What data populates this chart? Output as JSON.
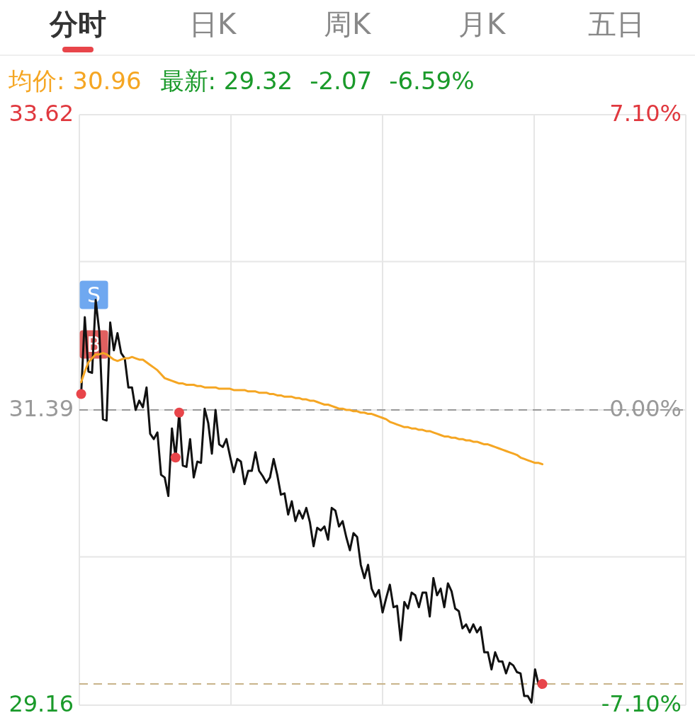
{
  "chart_data": {
    "type": "line",
    "annotations": [
      "分时",
      "日K",
      "周K",
      "月K",
      "五日",
      "均价: 30.96",
      "最新: 29.32",
      "-2.07",
      "-6.59%",
      "S",
      "B"
    ],
    "categories": [
      null,
      null,
      null,
      null,
      null,
      null,
      null,
      null,
      null,
      null,
      null,
      null,
      null,
      null,
      null,
      null,
      null,
      null,
      null,
      null,
      null,
      null,
      null,
      null,
      null,
      null,
      null,
      null,
      null,
      null,
      null,
      null,
      null,
      null,
      null,
      null,
      null,
      null,
      null,
      null,
      null,
      null,
      null,
      null,
      null,
      null,
      null,
      null,
      null,
      null,
      null,
      null,
      null,
      null,
      null,
      null,
      null,
      null,
      null,
      null,
      null,
      null,
      null,
      null,
      null,
      null,
      null,
      null,
      null,
      null,
      null,
      null,
      null,
      null,
      null,
      null,
      null,
      null,
      null,
      null,
      null,
      null,
      null,
      null,
      null,
      null,
      null,
      null,
      null,
      null,
      null,
      null,
      null,
      null,
      null,
      null,
      null,
      null,
      null,
      null,
      null,
      null,
      null,
      null,
      null,
      null,
      null,
      null,
      null,
      null,
      null,
      null,
      null,
      null,
      null,
      null,
      null,
      null,
      null,
      null,
      null,
      null,
      null,
      null,
      null,
      null,
      null,
      null,
      null,
      null,
      null,
      null,
      null,
      null,
      null,
      null,
      null,
      null,
      null,
      null,
      null,
      null,
      null,
      null,
      null,
      null,
      null,
      null,
      null,
      null,
      null,
      null,
      null,
      null,
      null,
      null,
      null,
      null,
      null,
      null,
      null,
      null,
      null,
      null,
      null,
      null,
      null
    ],
    "ylim": [
      29.16,
      33.62
    ],
    "yticks": [
      33.62,
      {
        "value": 32.51,
        "label": null
      },
      31.39,
      {
        "value": 30.28,
        "label": null
      },
      29.16
    ],
    "y2lim": [
      -7.1,
      7.1
    ],
    "y2ticks": [
      {
        "value": 7.1,
        "label": "7.10%"
      },
      {
        "value": 0,
        "label": "0.00%"
      },
      {
        "value": -7.1,
        "label": "-7.10%"
      }
    ],
    "grid": true,
    "tick_labels": "y",
    "line_style": "solid",
    "marker": "none",
    "ref_lines": [
      {
        "axis": "y",
        "value": 31.39,
        "color": "#999999",
        "line_style": "dashed"
      },
      {
        "axis": "y",
        "value": 29.32,
        "color": "#c8b48a",
        "line_style": "dashed"
      }
    ],
    "series": [
      {
        "color": "#111111",
        "values": [
          31.51,
          32.09,
          31.68,
          31.67,
          32.22,
          31.98,
          31.32,
          31.31,
          32.05,
          31.84,
          31.97,
          31.82,
          31.78,
          31.56,
          31.56,
          31.39,
          31.46,
          31.41,
          31.56,
          31.21,
          31.17,
          31.22,
          30.9,
          30.88,
          30.74,
          31.25,
          31.03,
          31.37,
          30.97,
          30.96,
          31.17,
          30.88,
          31.0,
          30.99,
          31.4,
          31.29,
          31.06,
          31.39,
          31.13,
          31.11,
          31.17,
          31.04,
          30.92,
          31.02,
          31.0,
          30.83,
          30.93,
          30.93,
          31.07,
          30.93,
          30.89,
          30.84,
          30.88,
          31.02,
          30.9,
          30.75,
          30.76,
          30.6,
          30.7,
          30.55,
          30.63,
          30.57,
          30.65,
          30.54,
          30.36,
          30.5,
          30.48,
          30.51,
          30.41,
          30.65,
          30.63,
          30.51,
          30.55,
          30.43,
          30.33,
          30.46,
          30.43,
          30.22,
          30.12,
          30.22,
          30.04,
          29.98,
          30.03,
          29.86,
          29.97,
          30.07,
          29.9,
          29.91,
          29.65,
          29.94,
          29.89,
          30.01,
          29.99,
          29.9,
          30.01,
          30.01,
          29.83,
          30.12,
          29.99,
          30.04,
          29.9,
          30.08,
          30.02,
          29.89,
          29.87,
          29.74,
          29.77,
          29.71,
          29.77,
          29.71,
          29.75,
          29.56,
          29.56,
          29.43,
          29.56,
          29.49,
          29.49,
          29.4,
          29.48,
          29.46,
          29.41,
          29.4,
          29.23,
          29.23,
          29.18,
          29.43,
          29.31,
          29.32,
          null,
          null,
          null,
          null,
          null,
          null,
          null,
          null,
          null,
          null,
          null,
          null,
          null,
          null,
          null,
          null,
          null,
          null,
          null,
          null,
          null,
          null,
          null,
          null,
          null,
          null,
          null,
          null,
          null,
          null,
          null,
          null,
          null,
          null,
          null,
          null,
          null,
          null,
          null
        ]
      },
      {
        "color": "#f5a623",
        "values": [
          31.6,
          31.68,
          31.75,
          31.78,
          31.81,
          31.81,
          31.82,
          31.81,
          31.79,
          31.77,
          31.76,
          31.77,
          31.78,
          31.78,
          31.79,
          31.78,
          31.77,
          31.77,
          31.75,
          31.73,
          31.71,
          31.69,
          31.66,
          31.63,
          31.62,
          31.61,
          31.6,
          31.59,
          31.59,
          31.58,
          31.58,
          31.58,
          31.57,
          31.57,
          31.56,
          31.56,
          31.56,
          31.56,
          31.55,
          31.55,
          31.55,
          31.55,
          31.54,
          31.54,
          31.54,
          31.54,
          31.53,
          31.53,
          31.53,
          31.52,
          31.52,
          31.52,
          31.51,
          31.51,
          31.5,
          31.5,
          31.49,
          31.49,
          31.49,
          31.48,
          31.48,
          31.47,
          31.47,
          31.46,
          31.46,
          31.45,
          31.44,
          31.43,
          31.43,
          31.42,
          31.41,
          31.4,
          31.4,
          31.39,
          31.39,
          31.38,
          31.38,
          31.37,
          31.37,
          31.36,
          31.36,
          31.35,
          31.34,
          31.33,
          31.32,
          31.3,
          31.29,
          31.28,
          31.27,
          31.26,
          31.26,
          31.25,
          31.25,
          31.24,
          31.24,
          31.23,
          31.23,
          31.22,
          31.21,
          31.2,
          31.19,
          31.19,
          31.18,
          31.18,
          31.17,
          31.17,
          31.16,
          31.16,
          31.15,
          31.15,
          31.14,
          31.13,
          31.13,
          31.12,
          31.11,
          31.1,
          31.09,
          31.08,
          31.07,
          31.06,
          31.05,
          31.03,
          31.02,
          31.01,
          31.0,
          30.99,
          30.99,
          30.98,
          null,
          null,
          null,
          null,
          null,
          null,
          null,
          null,
          null,
          null,
          null,
          null,
          null,
          null,
          null,
          null,
          null,
          null,
          null,
          null,
          null,
          null,
          null,
          null,
          null,
          null,
          null,
          null,
          null,
          null,
          null,
          null,
          null,
          null,
          null,
          null,
          null,
          null,
          null
        ]
      }
    ]
  }
}
